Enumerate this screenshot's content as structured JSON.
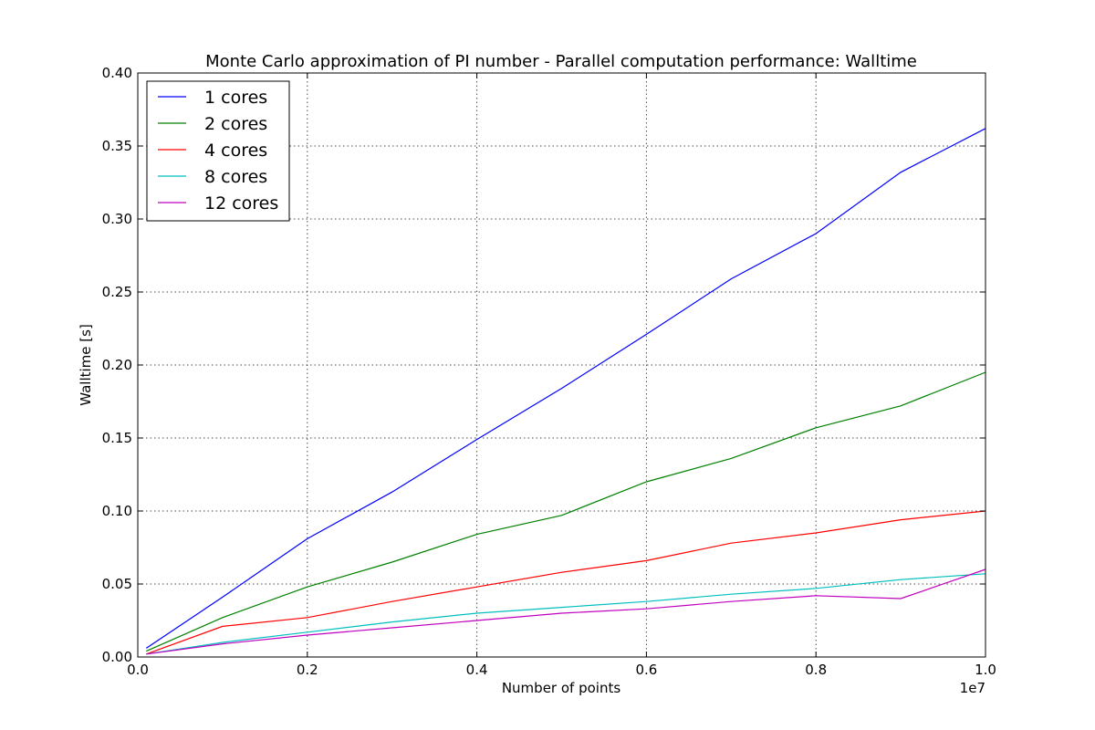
{
  "chart_data": {
    "type": "line",
    "title": "Monte Carlo approximation of PI number - Parallel computation performance: Walltime",
    "xlabel": "Number of points",
    "ylabel": "Walltime [s]",
    "x_offset_label": "1e7",
    "xlim": [
      0,
      10000000
    ],
    "ylim": [
      0,
      0.4
    ],
    "x_ticks": [
      0,
      2000000,
      4000000,
      6000000,
      8000000,
      10000000
    ],
    "x_tick_labels": [
      "0.0",
      "0.2",
      "0.4",
      "0.6",
      "0.8",
      "1.0"
    ],
    "y_ticks": [
      0,
      0.05,
      0.1,
      0.15,
      0.2,
      0.25,
      0.3,
      0.35,
      0.4
    ],
    "y_tick_labels": [
      "0.00",
      "0.05",
      "0.10",
      "0.15",
      "0.20",
      "0.25",
      "0.30",
      "0.35",
      "0.40"
    ],
    "grid": true,
    "legend_position": "top-left",
    "x": [
      100000,
      1000000,
      2000000,
      3000000,
      4000000,
      5000000,
      6000000,
      7000000,
      8000000,
      9000000,
      10000000
    ],
    "series": [
      {
        "name": "1 cores",
        "color": "#0000ff",
        "values": [
          0.006,
          0.041,
          0.081,
          0.113,
          0.149,
          0.184,
          0.221,
          0.259,
          0.29,
          0.332,
          0.362
        ]
      },
      {
        "name": "2 cores",
        "color": "#008000",
        "values": [
          0.004,
          0.027,
          0.048,
          0.065,
          0.084,
          0.097,
          0.12,
          0.136,
          0.157,
          0.172,
          0.195
        ]
      },
      {
        "name": "4 cores",
        "color": "#ff0000",
        "values": [
          0.002,
          0.021,
          0.027,
          0.038,
          0.048,
          0.058,
          0.066,
          0.078,
          0.085,
          0.094,
          0.1
        ]
      },
      {
        "name": "8 cores",
        "color": "#00bfbf",
        "values": [
          0.002,
          0.01,
          0.017,
          0.024,
          0.03,
          0.034,
          0.038,
          0.043,
          0.047,
          0.053,
          0.057
        ]
      },
      {
        "name": "12 cores",
        "color": "#bf00bf",
        "values": [
          0.002,
          0.009,
          0.015,
          0.02,
          0.025,
          0.03,
          0.033,
          0.038,
          0.042,
          0.04,
          0.06
        ]
      }
    ]
  }
}
